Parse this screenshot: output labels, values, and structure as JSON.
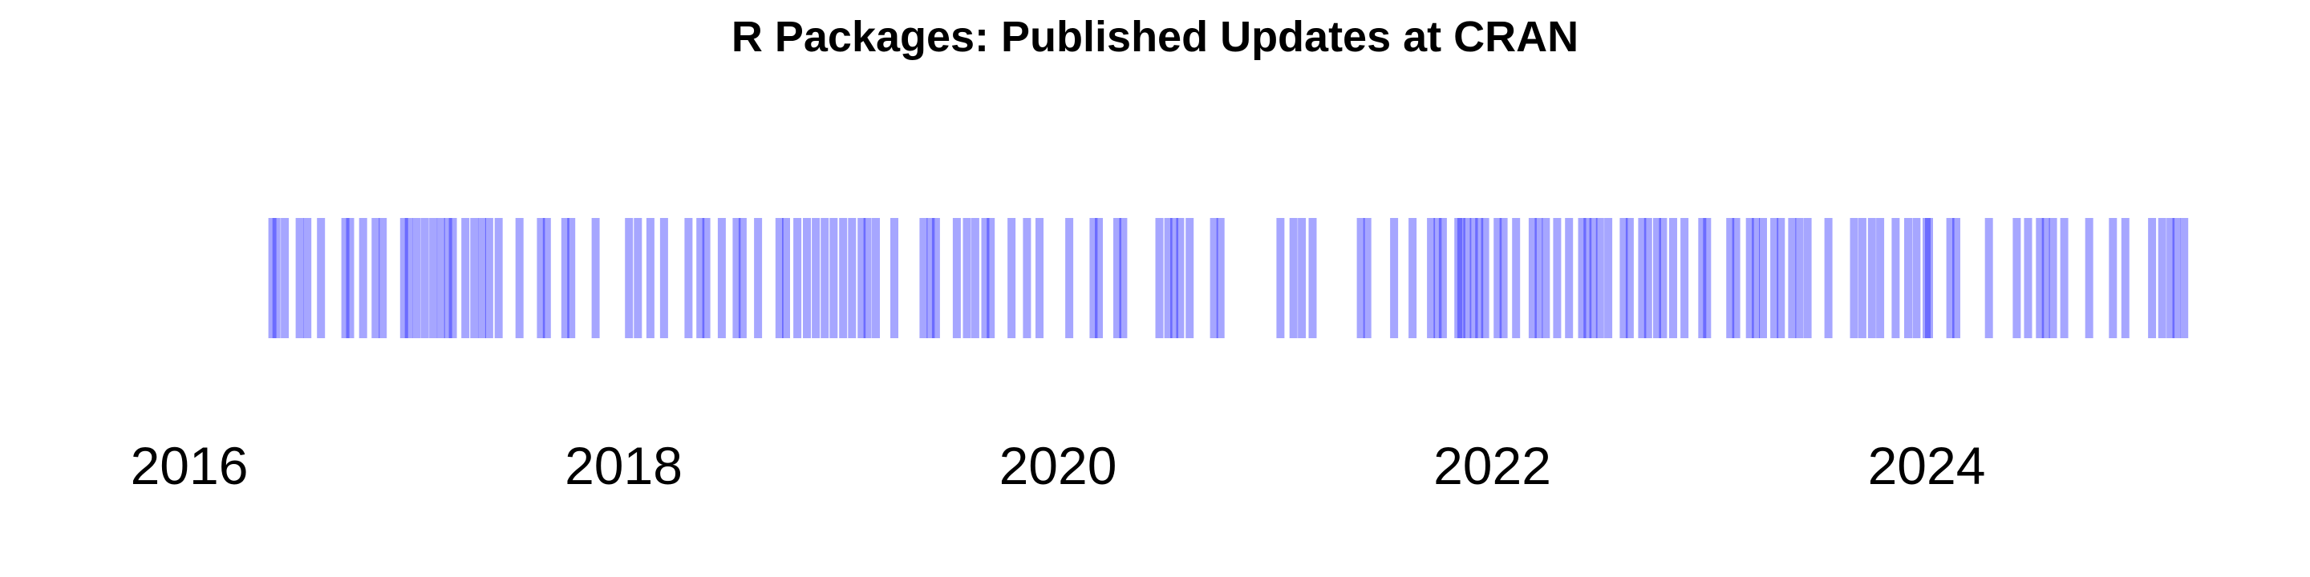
{
  "chart_data": {
    "type": "event-strip",
    "title": "R Packages: Published Updates at CRAN",
    "xlabel": "",
    "ylabel": "",
    "x_axis": {
      "type": "date",
      "range": [
        "2016-01-01",
        "2025-04-01"
      ],
      "ticks": [
        {
          "value": "2016-01-01",
          "label": "2016"
        },
        {
          "value": "2018-01-01",
          "label": "2018"
        },
        {
          "value": "2020-01-01",
          "label": "2020"
        },
        {
          "value": "2022-01-01",
          "label": "2022"
        },
        {
          "value": "2024-01-01",
          "label": "2024"
        }
      ]
    },
    "grid": false,
    "legend": "none",
    "mark_color": "#0000ff",
    "mark_opacity": 0.35,
    "events": [
      "2016-05-20",
      "2016-05-27",
      "2016-06-10",
      "2016-07-05",
      "2016-07-18",
      "2016-08-10",
      "2016-09-20",
      "2016-09-28",
      "2016-10-20",
      "2016-11-10",
      "2016-11-22",
      "2016-12-28",
      "2017-01-05",
      "2017-01-18",
      "2017-02-01",
      "2017-02-15",
      "2017-02-28",
      "2017-03-12",
      "2017-03-20",
      "2017-04-10",
      "2017-04-25",
      "2017-05-08",
      "2017-05-20",
      "2017-06-05",
      "2017-07-10",
      "2017-08-15",
      "2017-08-25",
      "2017-09-25",
      "2017-10-05",
      "2017-11-15",
      "2018-01-10",
      "2018-01-25",
      "2018-02-15",
      "2018-03-10",
      "2018-04-20",
      "2018-05-10",
      "2018-05-20",
      "2018-06-15",
      "2018-07-10",
      "2018-07-20",
      "2018-08-15",
      "2018-09-20",
      "2018-10-01",
      "2018-10-20",
      "2018-11-05",
      "2018-11-20",
      "2018-12-05",
      "2018-12-20",
      "2019-01-05",
      "2019-01-20",
      "2019-02-05",
      "2019-02-15",
      "2019-03-01",
      "2019-04-01",
      "2019-05-20",
      "2019-06-01",
      "2019-06-10",
      "2019-07-15",
      "2019-08-01",
      "2019-08-15",
      "2019-09-01",
      "2019-09-10",
      "2019-10-15",
      "2019-11-10",
      "2019-12-01",
      "2020-01-20",
      "2020-03-01",
      "2020-03-10",
      "2020-04-10",
      "2020-04-20",
      "2020-06-20",
      "2020-07-05",
      "2020-07-15",
      "2020-07-25",
      "2020-08-10",
      "2020-09-20",
      "2020-10-01",
      "2021-01-10",
      "2021-02-01",
      "2021-02-15",
      "2021-03-05",
      "2021-05-25",
      "2021-06-05",
      "2021-07-20",
      "2021-08-20",
      "2021-09-20",
      "2021-10-01",
      "2021-10-10",
      "2021-11-05",
      "2021-11-10",
      "2021-11-20",
      "2021-12-01",
      "2021-12-10",
      "2021-12-20",
      "2022-01-10",
      "2022-01-20",
      "2022-02-10",
      "2022-03-10",
      "2022-03-20",
      "2022-04-01",
      "2022-04-20",
      "2022-05-10",
      "2022-06-01",
      "2022-06-10",
      "2022-06-20",
      "2022-07-01",
      "2022-07-15",
      "2022-08-10",
      "2022-08-20",
      "2022-09-10",
      "2022-09-20",
      "2022-10-05",
      "2022-10-15",
      "2022-11-01",
      "2022-11-20",
      "2022-12-20",
      "2022-12-28",
      "2023-02-05",
      "2023-02-15",
      "2023-03-10",
      "2023-03-20",
      "2023-04-01",
      "2023-04-20",
      "2023-05-01",
      "2023-05-20",
      "2023-06-01",
      "2023-06-15",
      "2023-07-20",
      "2023-09-01",
      "2023-09-15",
      "2023-10-01",
      "2023-10-15",
      "2023-11-10",
      "2023-12-01",
      "2023-12-15",
      "2024-01-01",
      "2024-01-05",
      "2024-02-10",
      "2024-02-20",
      "2024-04-15",
      "2024-06-01",
      "2024-06-20",
      "2024-07-10",
      "2024-07-20",
      "2024-08-01",
      "2024-08-20",
      "2024-10-01",
      "2024-11-10",
      "2024-12-01",
      "2025-01-15",
      "2025-02-01",
      "2025-02-15",
      "2025-02-25",
      "2025-03-10"
    ]
  }
}
